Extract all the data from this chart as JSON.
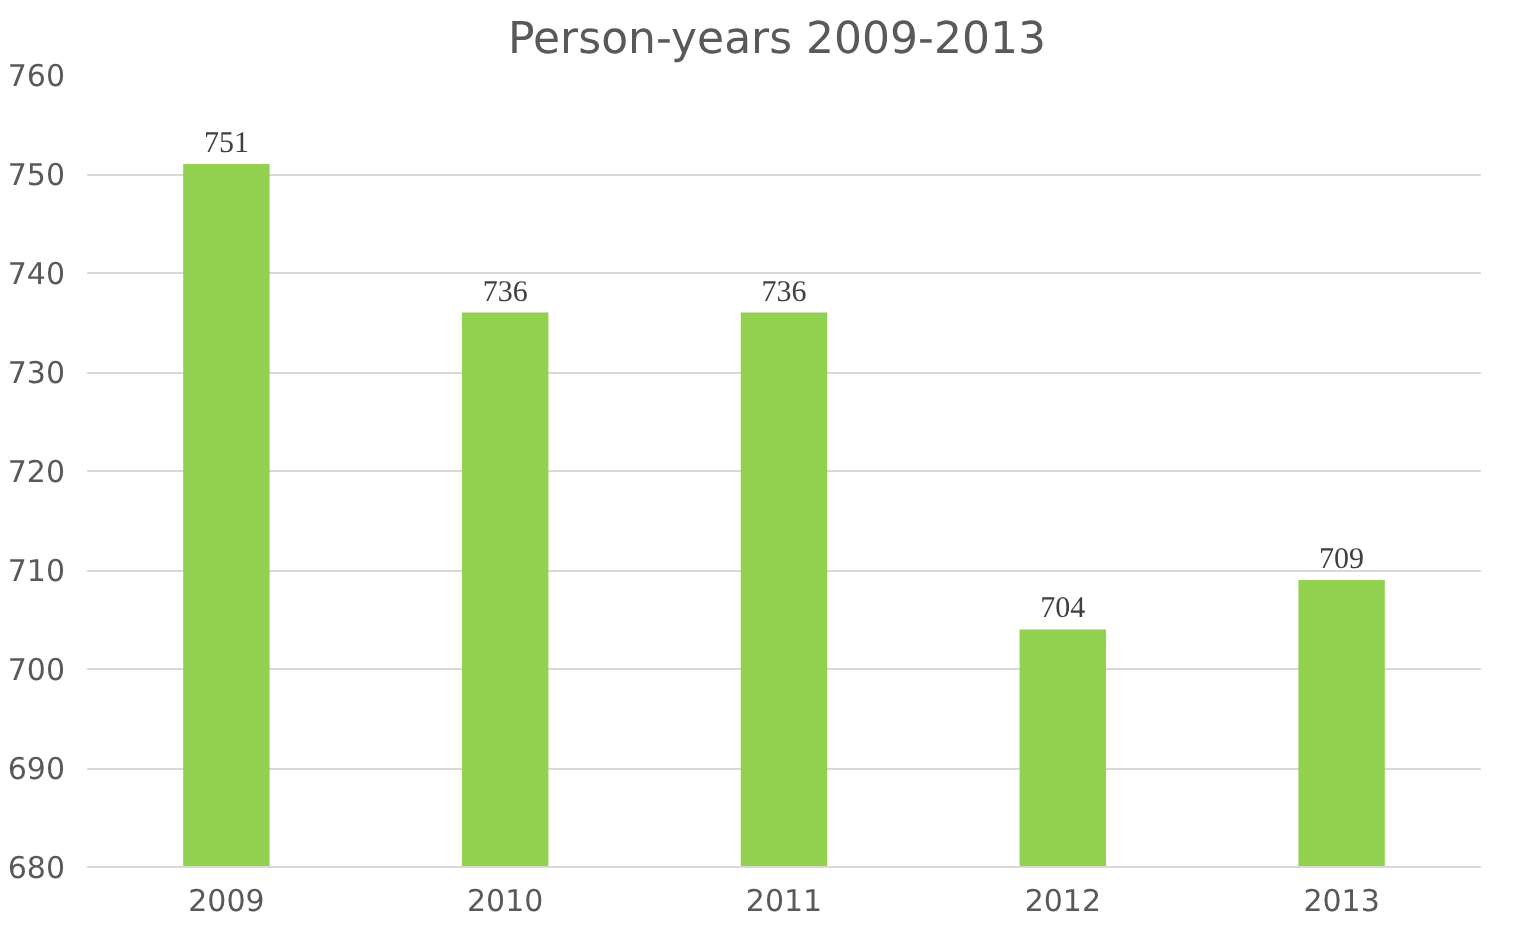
{
  "chart_data": {
    "type": "bar",
    "title": "Person-years  2009-2013",
    "categories": [
      "2009",
      "2010",
      "2011",
      "2012",
      "2013"
    ],
    "values": [
      751,
      736,
      736,
      704,
      709
    ],
    "color": "#92d050",
    "ylim": [
      680,
      760
    ],
    "yticks": [
      680,
      690,
      700,
      710,
      720,
      730,
      740,
      750,
      760
    ],
    "grid": "y",
    "data_labels": true
  }
}
